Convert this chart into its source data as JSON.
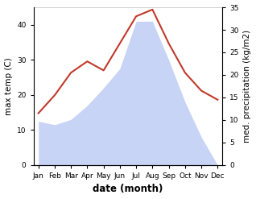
{
  "months": [
    "Jan",
    "Feb",
    "Mar",
    "Apr",
    "May",
    "Jun",
    "Jul",
    "Aug",
    "Sep",
    "Oct",
    "Nov",
    "Dec"
  ],
  "max_temp": [
    12.5,
    11.5,
    13.0,
    17.0,
    22.0,
    27.5,
    41.0,
    41.0,
    30.0,
    18.0,
    8.0,
    0.0
  ],
  "precipitation": [
    11.5,
    15.5,
    20.5,
    23.0,
    21.0,
    27.0,
    33.0,
    34.5,
    27.0,
    20.5,
    16.5,
    14.5
  ],
  "temp_area_color": "#c8d4f5",
  "precip_line_color": "#c0392b",
  "temp_ylim": [
    0,
    45
  ],
  "precip_ylim": [
    0,
    35
  ],
  "xlabel": "date (month)",
  "ylabel_left": "max temp (C)",
  "ylabel_right": "med. precipitation (kg/m2)",
  "bg_color": "#ffffff",
  "tick_fontsize": 6.5,
  "label_fontsize": 7.5,
  "xlabel_fontsize": 8.5
}
